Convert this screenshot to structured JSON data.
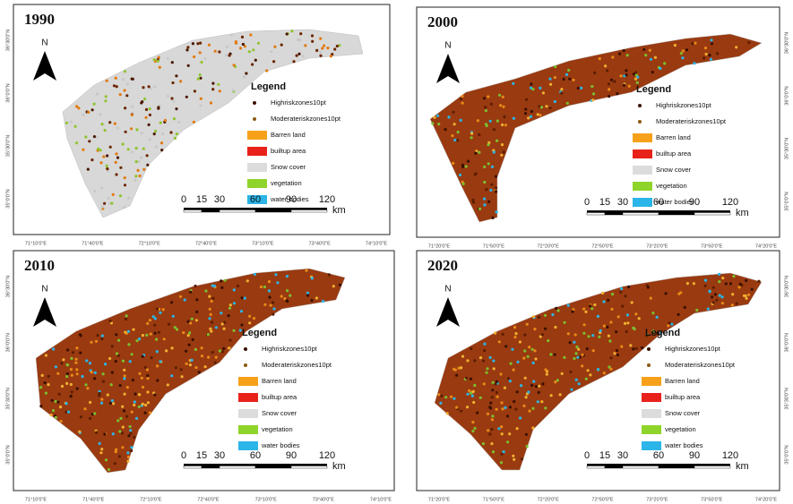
{
  "panels": [
    {
      "year": "1990",
      "north": "N",
      "legend": {
        "title": "Legend",
        "items": [
          "Highriskzones10pt",
          "Moderateriskzones10pt",
          "Barren land",
          "builtup area",
          "Snow cover",
          "vegetation",
          "water bodies"
        ]
      },
      "scale_ticks": [
        0,
        15,
        30,
        60,
        90,
        120
      ],
      "scale_unit": "km",
      "lon_labels": [
        "71°10'0\"E",
        "71°40'0\"E",
        "72°10'0\"E",
        "72°40'0\"E",
        "73°10'0\"E",
        "73°40'0\"E",
        "74°10'0\"E"
      ],
      "lat_labels": [
        "36°30'0\"N",
        "36°0'0\"N",
        "35°30'0\"N",
        "35°0'0\"N"
      ]
    },
    {
      "year": "2000",
      "north": "N",
      "legend": {
        "title": "Legend",
        "items": [
          "Highriskzones10pt",
          "Moderateriskzones10pt",
          "Barren land",
          "builtup area",
          "Snow cover",
          "vegetation",
          "water bodies"
        ]
      },
      "scale_ticks": [
        0,
        15,
        30,
        60,
        90,
        120
      ],
      "scale_unit": "km",
      "lon_labels": [
        "71°20'0\"E",
        "71°50'0\"E",
        "72°20'0\"E",
        "72°50'0\"E",
        "73°20'0\"E",
        "73°50'0\"E",
        "74°20'0\"E"
      ],
      "lat_labels": [
        "36°30'0\"N",
        "36°0'0\"N",
        "35°30'0\"N",
        "35°0'0\"N"
      ]
    },
    {
      "year": "2010",
      "north": "N",
      "legend": {
        "title": "Legend",
        "items": [
          "Highriskzones10pt",
          "Moderateriskzones10pt",
          "Barren land",
          "builtup area",
          "Snow cover",
          "vegetation",
          "water bodies"
        ]
      },
      "scale_ticks": [
        0,
        15,
        30,
        60,
        90,
        120
      ],
      "scale_unit": "km",
      "lon_labels": [
        "71°10'0\"E",
        "71°40'0\"E",
        "72°10'0\"E",
        "72°40'0\"E",
        "73°10'0\"E",
        "73°40'0\"E",
        "74°10'0\"E"
      ],
      "lat_labels": [
        "36°30'0\"N",
        "36°0'0\"N",
        "35°30'0\"N",
        "35°0'0\"N"
      ]
    },
    {
      "year": "2020",
      "north": "N",
      "legend": {
        "title": "Legend",
        "items": [
          "Highriskzones10pt",
          "Moderateriskzones10pt",
          "Barren land",
          "builtup area",
          "Snow cover",
          "vegetation",
          "water bodies"
        ]
      },
      "scale_ticks": [
        0,
        15,
        30,
        60,
        90,
        120
      ],
      "scale_unit": "km",
      "lon_labels": [
        "71°20'0\"E",
        "71°50'0\"E",
        "72°20'0\"E",
        "72°50'0\"E",
        "73°20'0\"E",
        "73°50'0\"E",
        "74°20'0\"E"
      ],
      "lat_labels": [
        "36°30'0\"N",
        "36°0'0\"N",
        "35°30'0\"N",
        "35°0'0\"N"
      ]
    }
  ]
}
